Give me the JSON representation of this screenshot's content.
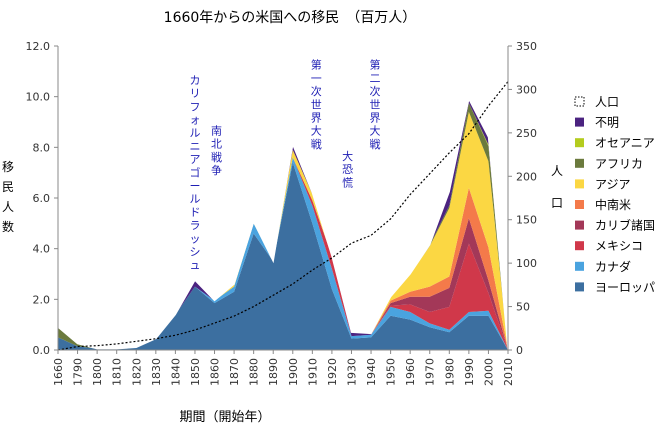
{
  "chart_data": {
    "type": "area",
    "stacked": true,
    "title": "1660年からの米国への移民　（百万人）",
    "xlabel": "期間（開始年）",
    "ylabel": "移民人数",
    "y2label": "人口",
    "ylim": [
      0,
      12
    ],
    "y_ticks": [
      0,
      2,
      4,
      6,
      8,
      10,
      12
    ],
    "y_tick_labels": [
      "0.0",
      "2.0",
      "4.0",
      "6.0",
      "8.0",
      "10.0",
      "12.0"
    ],
    "y2lim": [
      0,
      350
    ],
    "y2_ticks": [
      0,
      50,
      100,
      150,
      200,
      250,
      300,
      350
    ],
    "y2_tick_labels": [
      "0",
      "50",
      "100",
      "150",
      "200",
      "250",
      "300",
      "350"
    ],
    "x": [
      1660,
      1790,
      1800,
      1810,
      1820,
      1830,
      1840,
      1850,
      1860,
      1870,
      1880,
      1890,
      1900,
      1910,
      1920,
      1930,
      1940,
      1950,
      1960,
      1970,
      1980,
      1990,
      2000,
      2010
    ],
    "x_tick_labels": [
      "1660",
      "1790",
      "1800",
      "1810",
      "1820",
      "1830",
      "1840",
      "1850",
      "1860",
      "1870",
      "1880",
      "1890",
      "1900",
      "1910",
      "1920",
      "1930",
      "1940",
      "1950",
      "1960",
      "1970",
      "1980",
      "1990",
      "2000",
      "2010"
    ],
    "grid": false,
    "legend_position": "right",
    "series": [
      {
        "name": "ヨーロッパ",
        "color": "#3c6fa0",
        "values": [
          0.5,
          0.15,
          0.05,
          0.05,
          0.1,
          0.45,
          1.4,
          2.5,
          1.85,
          2.3,
          4.6,
          3.5,
          7.4,
          5.0,
          2.4,
          0.45,
          0.5,
          1.35,
          1.2,
          0.9,
          0.7,
          1.35,
          1.35,
          0
        ]
      },
      {
        "name": "カナダ",
        "color": "#4aa3df",
        "values": [
          0,
          0,
          0,
          0,
          0,
          0,
          0,
          0,
          0.1,
          0.2,
          0.4,
          0,
          0.2,
          0.7,
          0.8,
          0.1,
          0.1,
          0.35,
          0.3,
          0.15,
          0.1,
          0.15,
          0.2,
          0
        ]
      },
      {
        "name": "メキシコ",
        "color": "#d0384a",
        "values": [
          0,
          0,
          0,
          0,
          0,
          0,
          0,
          0,
          0,
          0,
          0,
          0,
          0,
          0.2,
          0.5,
          0,
          0,
          0.05,
          0.3,
          0.45,
          0.9,
          2.7,
          0.7,
          0
        ]
      },
      {
        "name": "カリブ諸国",
        "color": "#a33858",
        "values": [
          0,
          0,
          0,
          0,
          0,
          0,
          0,
          0,
          0,
          0,
          0,
          0,
          0,
          0,
          0,
          0,
          0,
          0.1,
          0.3,
          0.6,
          0.75,
          1.0,
          0.5,
          0
        ]
      },
      {
        "name": "中南米",
        "color": "#f47a4a",
        "values": [
          0,
          0,
          0,
          0,
          0,
          0,
          0,
          0,
          0,
          0,
          0,
          0,
          0,
          0,
          0,
          0,
          0,
          0.1,
          0.2,
          0.4,
          0.45,
          1.2,
          1.3,
          0
        ]
      },
      {
        "name": "アジア",
        "color": "#fbd743",
        "values": [
          0,
          0,
          0,
          0,
          0,
          0,
          0,
          0,
          0,
          0.1,
          0.05,
          0,
          0.3,
          0.25,
          0,
          0,
          0,
          0.15,
          0.7,
          1.6,
          2.7,
          3.0,
          3.4,
          0
        ]
      },
      {
        "name": "アフリカ",
        "color": "#6b7a3d",
        "values": [
          0.4,
          0.1,
          0,
          0,
          0,
          0,
          0,
          0,
          0,
          0,
          0,
          0,
          0,
          0,
          0,
          0,
          0,
          0,
          0,
          0.05,
          0.1,
          0.35,
          0.6,
          0
        ]
      },
      {
        "name": "オセアニア",
        "color": "#b4cc1e",
        "values": [
          0,
          0,
          0,
          0,
          0,
          0,
          0,
          0,
          0,
          0,
          0,
          0,
          0,
          0,
          0,
          0,
          0,
          0,
          0,
          0,
          0,
          0,
          0.05,
          0
        ]
      },
      {
        "name": "不明",
        "color": "#4b2380",
        "values": [
          0,
          0,
          0,
          0,
          0,
          0,
          0,
          0.25,
          0,
          0,
          0,
          0,
          0.2,
          0.05,
          0,
          0.15,
          0.05,
          0,
          0,
          0,
          0.55,
          0.15,
          0.3,
          0
        ]
      }
    ],
    "population": {
      "name": "人口",
      "values": [
        0,
        4,
        5,
        7,
        10,
        13,
        17,
        23,
        31,
        39,
        50,
        63,
        76,
        92,
        106,
        123,
        132,
        151,
        179,
        203,
        227,
        249,
        281,
        309
      ]
    },
    "annotations": [
      {
        "text": "カリフォルニアゴールドラッシュ",
        "x": 1850,
        "y_top": 10.9
      },
      {
        "text": "南北戦争",
        "x": 1861,
        "y_top": 8.9
      },
      {
        "text": "第一次世界大戦",
        "x": 1912,
        "y_top": 11.5
      },
      {
        "text": "大恐慌",
        "x": 1928,
        "y_top": 7.9
      },
      {
        "text": "第二次世界大戦",
        "x": 1942,
        "y_top": 11.5
      }
    ]
  }
}
